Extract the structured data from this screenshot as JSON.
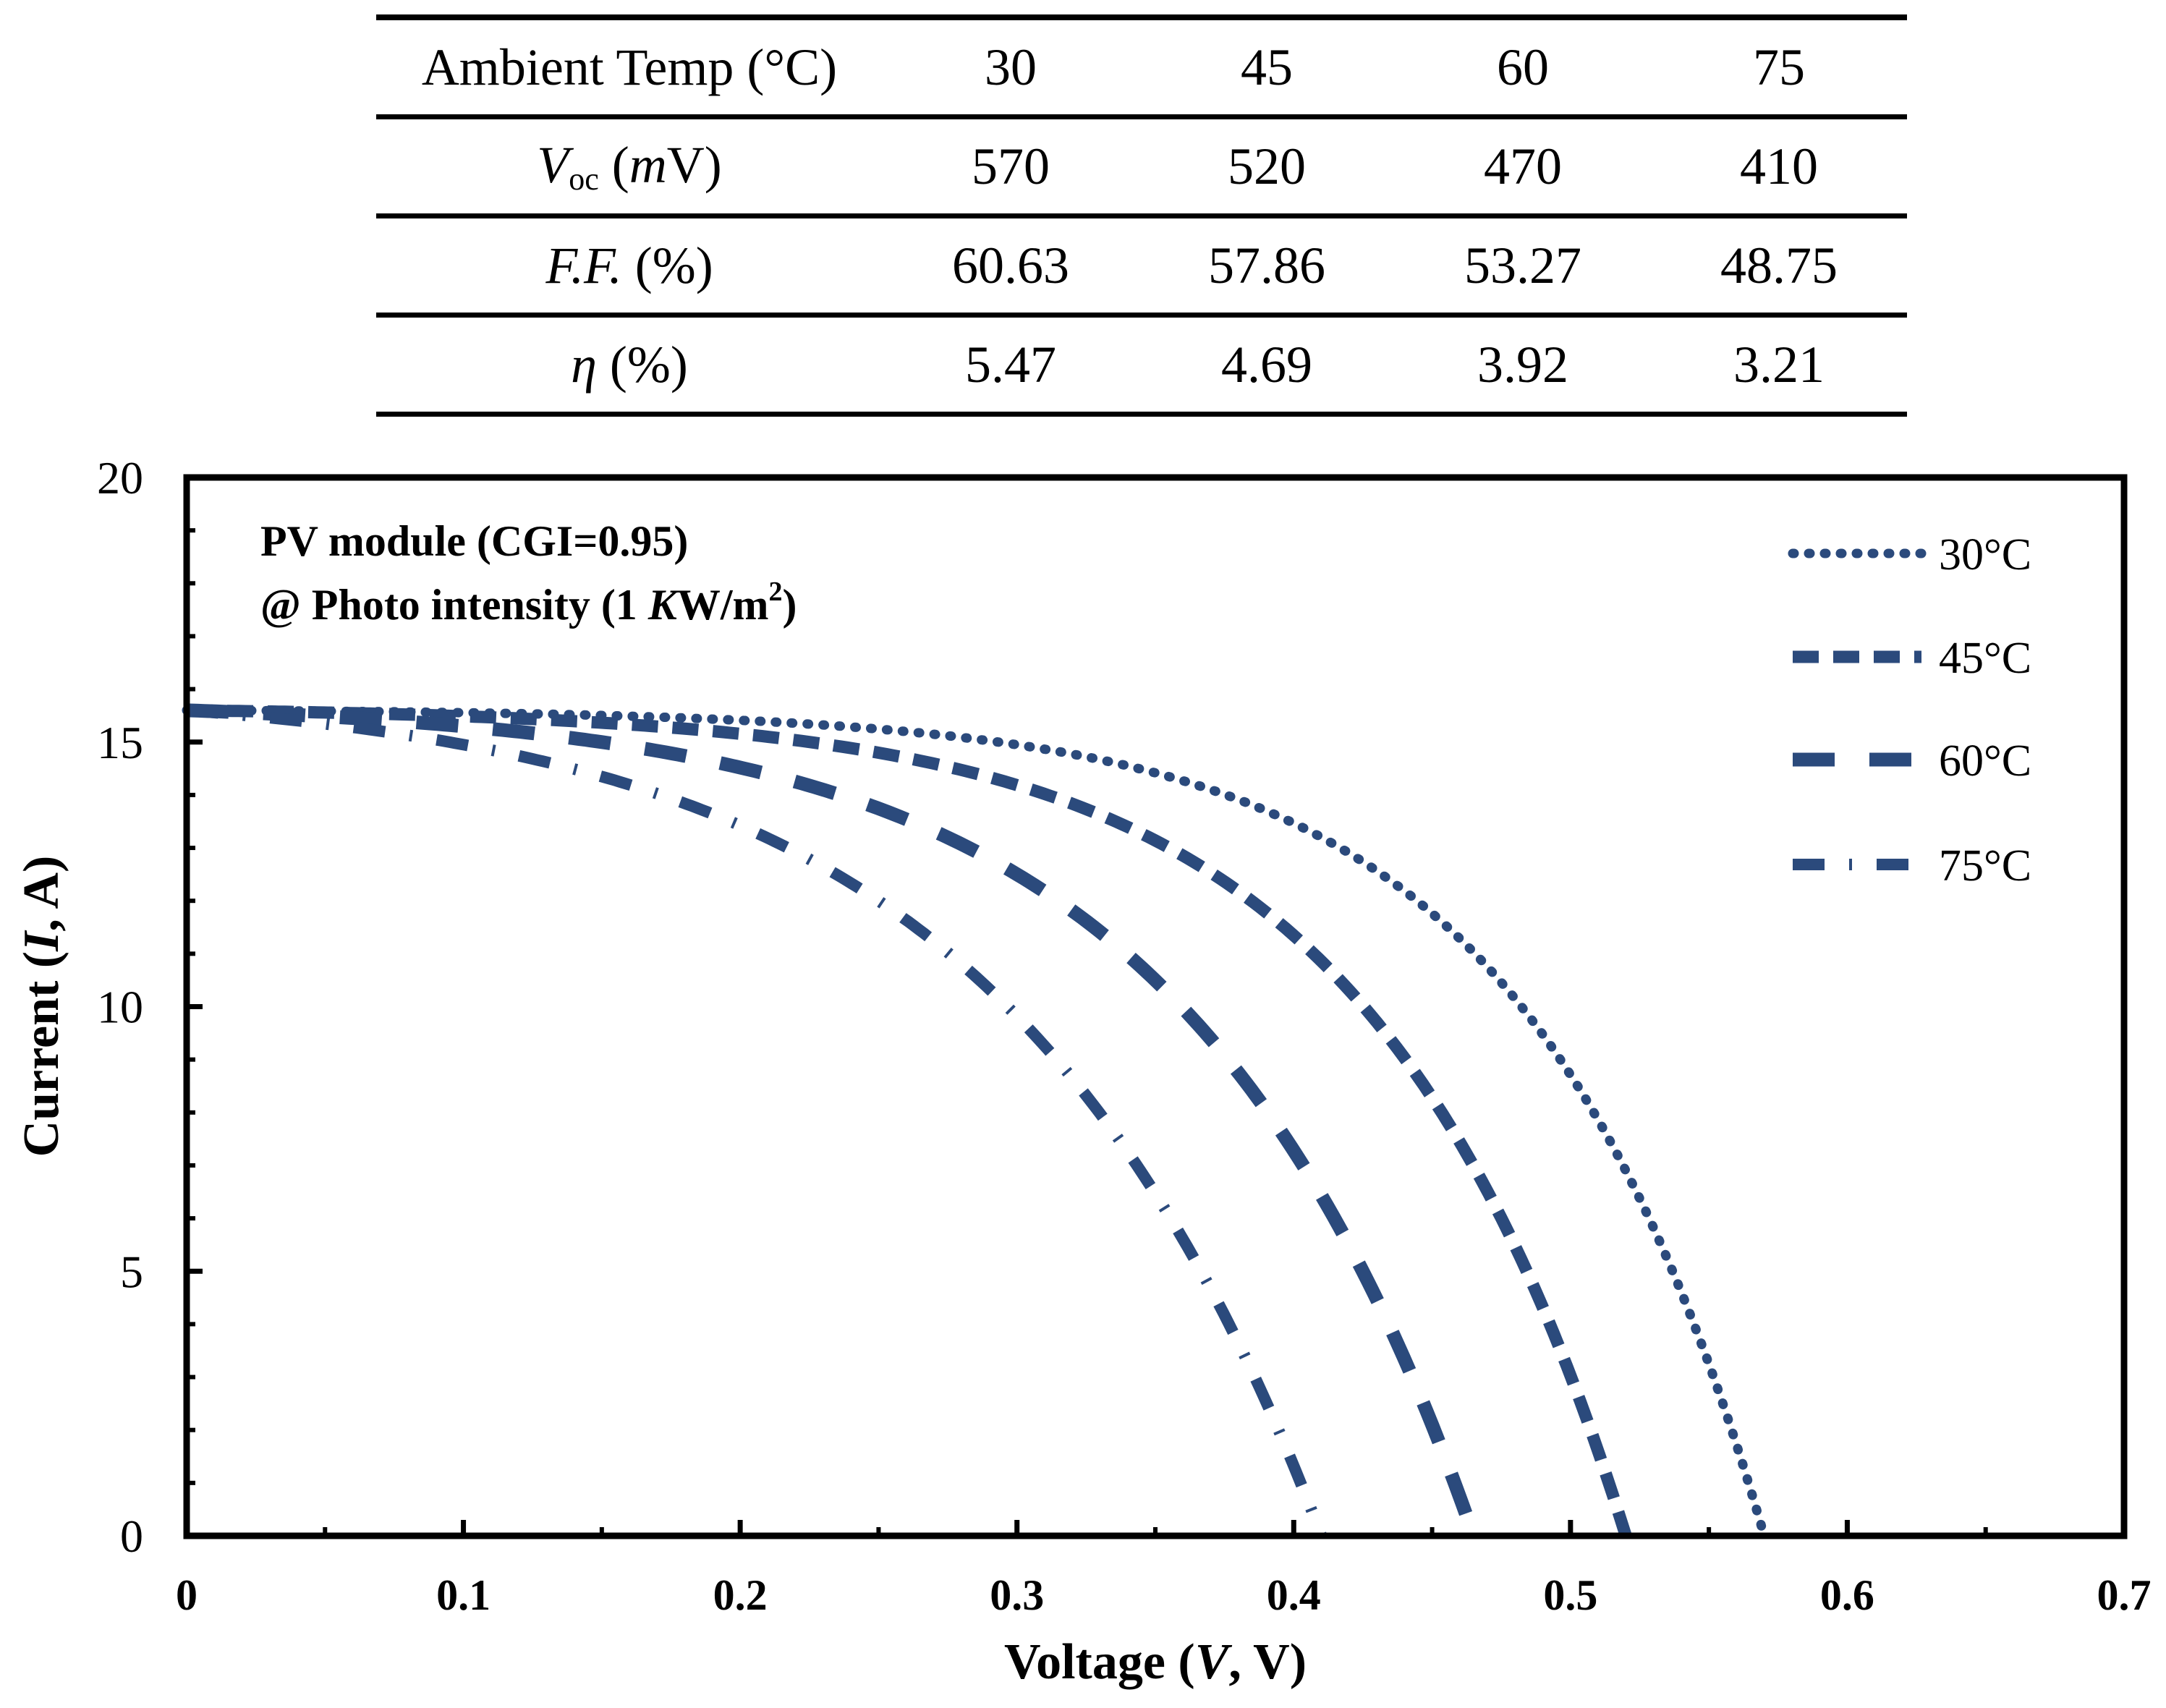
{
  "table": {
    "header": {
      "label": "Ambient Temp (°C)",
      "values": [
        "30",
        "45",
        "60",
        "75"
      ]
    },
    "rows": [
      {
        "sym": "V",
        "sub": "oc",
        "pre": " (",
        "unit_it": "m",
        "unit": "V)",
        "values": [
          "570",
          "520",
          "470",
          "410"
        ]
      },
      {
        "sym": "F.F.",
        "unit": " (%)",
        "values": [
          "60.63",
          "57.86",
          "53.27",
          "48.75"
        ]
      },
      {
        "sym": "η",
        "unit": " (%)",
        "values": [
          "5.47",
          "4.69",
          "3.92",
          "3.21"
        ]
      }
    ]
  },
  "colors": {
    "series": "#2b4a7c",
    "axis": "#000000"
  },
  "chart_data": {
    "type": "line",
    "title": "",
    "xlabel": {
      "pre": "Voltage (",
      "it": "V",
      "post": ", V)"
    },
    "ylabel": {
      "pre": "Current (",
      "it": "I",
      "post": ", A)"
    },
    "xlim": [
      0,
      0.7
    ],
    "ylim": [
      0,
      20
    ],
    "x_ticks": [
      "0",
      "0.1",
      "0.2",
      "0.3",
      "0.4",
      "0.5",
      "0.6",
      "0.7"
    ],
    "y_ticks": [
      "0",
      "5",
      "10",
      "15",
      "20"
    ],
    "annotation": {
      "line1": "PV module (CGI=0.95)",
      "line2_pre": "@ Photo intensity (1 ",
      "line2_it": "K",
      "line2_unit": "W/m",
      "line2_sup": "2",
      "line2_post": ")"
    },
    "legend_position": "top-right",
    "series": [
      {
        "name": "30°C",
        "style": "dotted",
        "isc": 15.6,
        "voc": 0.57,
        "knee": 0.41,
        "current_at_knee": 13.2
      },
      {
        "name": "45°C",
        "style": "dashed",
        "isc": 15.6,
        "voc": 0.52,
        "knee": 0.355,
        "current_at_knee": 13.0
      },
      {
        "name": "60°C",
        "style": "long-dashed",
        "isc": 15.6,
        "voc": 0.465,
        "knee": 0.3,
        "current_at_knee": 12.5
      },
      {
        "name": "75°C",
        "style": "dash-dot",
        "isc": 15.6,
        "voc": 0.41,
        "knee": 0.25,
        "current_at_knee": 12.0
      }
    ]
  }
}
